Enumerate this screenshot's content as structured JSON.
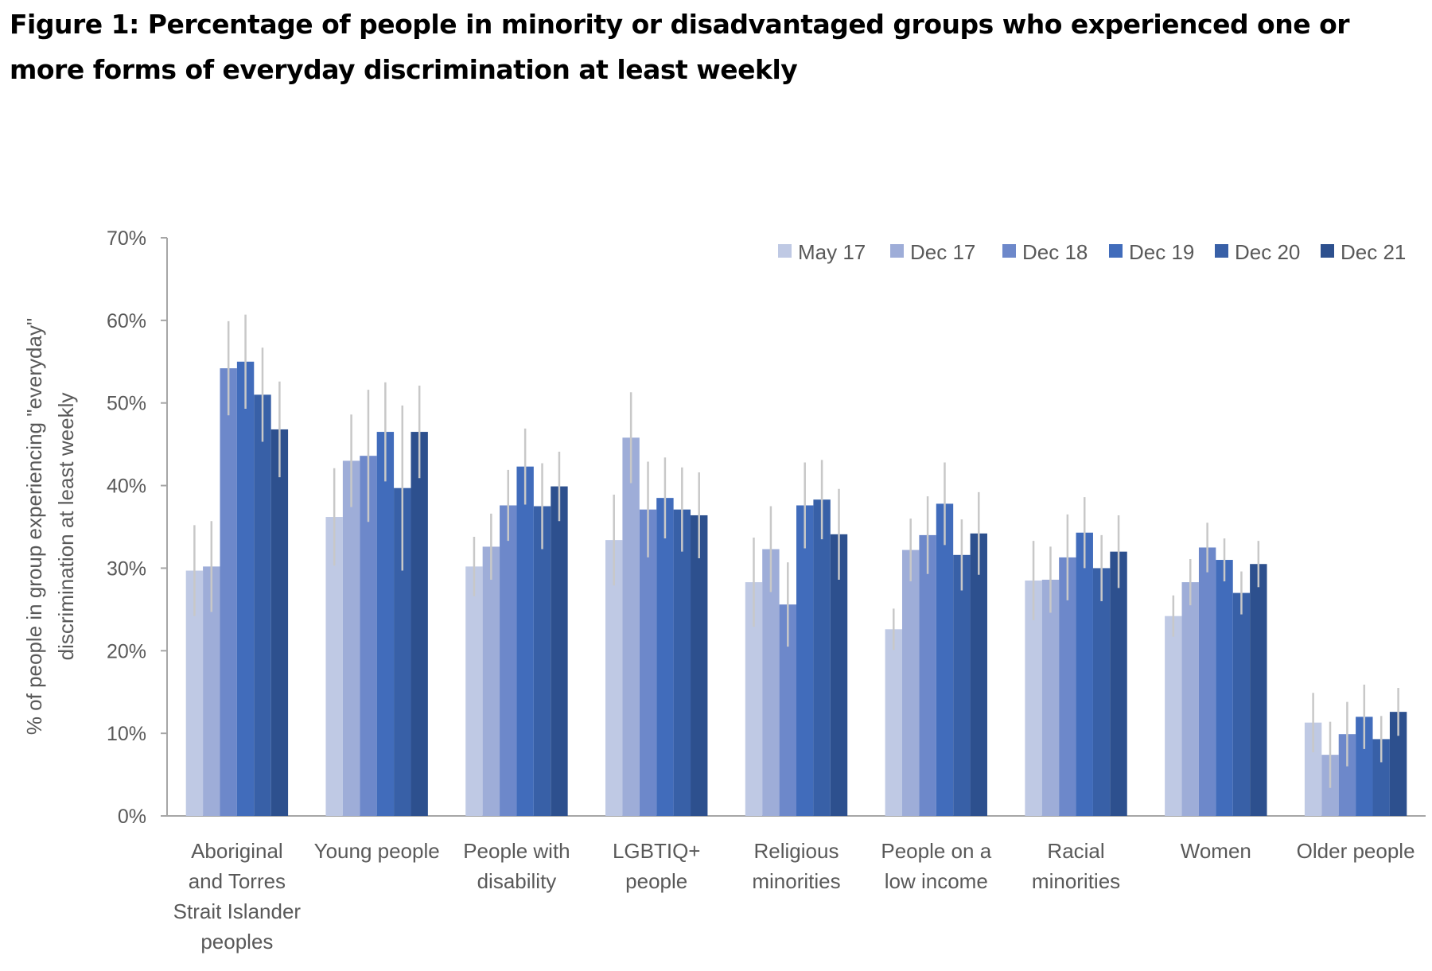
{
  "chart_data": {
    "type": "bar",
    "title": "Figure 1: Percentage of people in minority or disadvantaged groups who experienced one or more forms of everyday discrimination at least weekly",
    "ylabel_lines": [
      "% of people in group experiencing \"everyday\"",
      "discrimination at least weekly"
    ],
    "xlabel": "",
    "ylim": [
      0,
      70
    ],
    "yticks": [
      "0%",
      "10%",
      "20%",
      "30%",
      "40%",
      "50%",
      "60%",
      "70%"
    ],
    "grid": false,
    "legend_position": "top-right",
    "categories": [
      [
        "Aboriginal",
        "and Torres",
        "Strait Islander",
        "peoples"
      ],
      [
        "Young people"
      ],
      [
        "People with",
        "disability"
      ],
      [
        "LGBTIQ+",
        "people"
      ],
      [
        "Religious",
        "minorities"
      ],
      [
        "People on a",
        "low income"
      ],
      [
        "Racial",
        "minorities"
      ],
      [
        "Women"
      ],
      [
        "Older people"
      ]
    ],
    "series": [
      {
        "name": "May 17",
        "color": "#BFC9E4",
        "values": [
          29.7,
          36.2,
          30.2,
          33.4,
          28.3,
          22.6,
          28.5,
          24.2,
          11.3
        ],
        "error": [
          5.5,
          5.9,
          3.6,
          5.5,
          5.4,
          2.5,
          4.8,
          2.5,
          3.6
        ]
      },
      {
        "name": "Dec 17",
        "color": "#9EADD8",
        "values": [
          30.2,
          43.0,
          32.6,
          45.8,
          32.3,
          32.2,
          28.6,
          28.3,
          7.4
        ],
        "error": [
          5.5,
          5.6,
          4.0,
          5.5,
          5.2,
          3.8,
          4.0,
          2.8,
          4.0
        ]
      },
      {
        "name": "Dec 18",
        "color": "#6D88CA",
        "values": [
          54.2,
          43.6,
          37.6,
          37.1,
          25.6,
          34.0,
          31.3,
          32.5,
          9.9
        ],
        "error": [
          5.7,
          8.0,
          4.3,
          5.8,
          5.1,
          4.7,
          5.2,
          3.0,
          3.9
        ]
      },
      {
        "name": "Dec 19",
        "color": "#416CBB",
        "values": [
          55.0,
          46.5,
          42.3,
          38.5,
          37.6,
          37.8,
          34.3,
          31.0,
          12.0
        ],
        "error": [
          5.7,
          6.0,
          4.6,
          4.9,
          5.2,
          5.0,
          4.3,
          2.6,
          3.9
        ]
      },
      {
        "name": "Dec 20",
        "color": "#3860A7",
        "values": [
          51.0,
          39.7,
          37.5,
          37.1,
          38.3,
          31.6,
          30.0,
          27.0,
          9.3
        ],
        "error": [
          5.7,
          10.0,
          5.2,
          5.1,
          4.8,
          4.3,
          4.0,
          2.6,
          2.8
        ]
      },
      {
        "name": "Dec 21",
        "color": "#2D508E",
        "values": [
          46.8,
          46.5,
          39.9,
          36.4,
          34.1,
          34.2,
          32.0,
          30.5,
          12.6
        ],
        "error": [
          5.8,
          5.6,
          4.2,
          5.2,
          5.5,
          5.0,
          4.4,
          2.8,
          2.9
        ]
      }
    ]
  }
}
